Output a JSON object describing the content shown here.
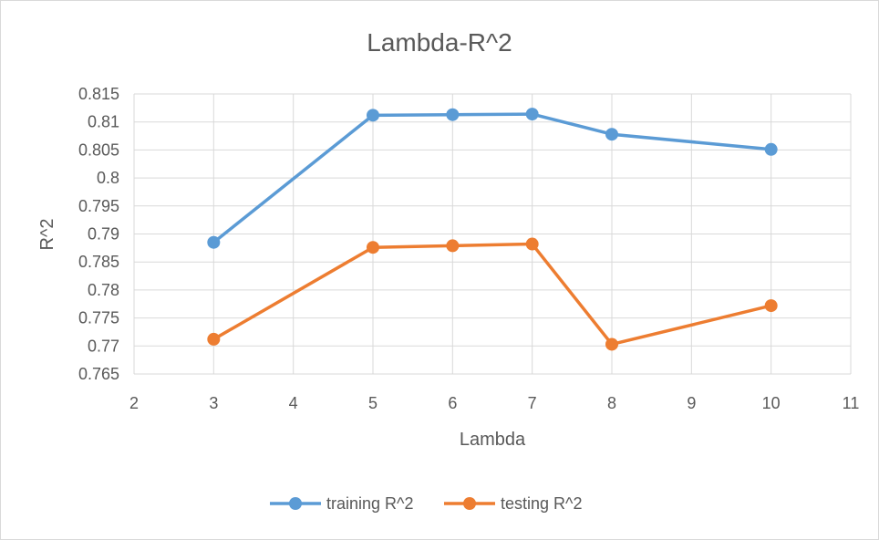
{
  "chart_data": {
    "type": "scatter",
    "title": "Lambda-R^2",
    "xlabel": "Lambda",
    "ylabel": "R^2",
    "xlim": [
      2,
      11
    ],
    "ylim": [
      0.765,
      0.815
    ],
    "x_ticks": [
      2,
      3,
      4,
      5,
      6,
      7,
      8,
      9,
      10,
      11
    ],
    "y_ticks": [
      0.765,
      0.77,
      0.775,
      0.78,
      0.785,
      0.79,
      0.795,
      0.8,
      0.805,
      0.81,
      0.815
    ],
    "grid": true,
    "legend_position": "bottom",
    "series": [
      {
        "name": "training R^2",
        "color": "#5b9bd5",
        "points": [
          {
            "x": 3,
            "y": 0.7885
          },
          {
            "x": 5,
            "y": 0.8112
          },
          {
            "x": 6,
            "y": 0.8113
          },
          {
            "x": 7,
            "y": 0.8114
          },
          {
            "x": 8,
            "y": 0.8078
          },
          {
            "x": 10,
            "y": 0.8051
          }
        ]
      },
      {
        "name": "testing R^2",
        "color": "#ed7d31",
        "points": [
          {
            "x": 3,
            "y": 0.7712
          },
          {
            "x": 5,
            "y": 0.7876
          },
          {
            "x": 6,
            "y": 0.7879
          },
          {
            "x": 7,
            "y": 0.7882
          },
          {
            "x": 8,
            "y": 0.7703
          },
          {
            "x": 10,
            "y": 0.7772
          }
        ]
      }
    ]
  }
}
